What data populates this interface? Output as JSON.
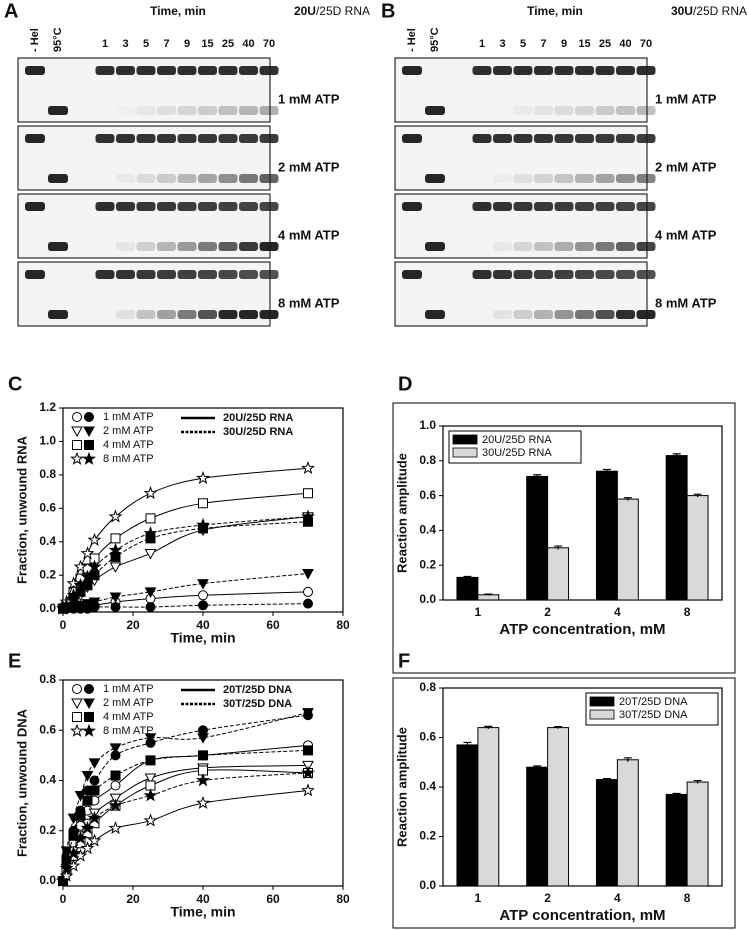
{
  "gels": [
    {
      "panel": "A",
      "lanes": [
        "- Hel",
        "95°C"
      ],
      "time_label": "Time, min",
      "times": [
        "1",
        "3",
        "5",
        "7",
        "9",
        "15",
        "25",
        "40",
        "70"
      ],
      "substrate_bold": "20U",
      "substrate_rest": "/25D RNA",
      "conditions": [
        "1 mM ATP",
        "2 mM ATP",
        "4 mM ATP",
        "8 mM ATP"
      ]
    },
    {
      "panel": "B",
      "lanes": [
        "- Hel",
        "95°C"
      ],
      "time_label": "Time, min",
      "times": [
        "1",
        "3",
        "5",
        "7",
        "9",
        "15",
        "25",
        "40",
        "70"
      ],
      "substrate_bold": "30U",
      "substrate_rest": "/25D RNA",
      "conditions": [
        "1 mM ATP",
        "2 mM ATP",
        "4 mM ATP",
        "8 mM ATP"
      ]
    }
  ],
  "chart_data": [
    {
      "type": "line",
      "panel": "C",
      "x_label": "Time, min",
      "y_label": "Fraction, unwound RNA",
      "x": [
        0,
        1,
        3,
        5,
        7,
        9,
        15,
        25,
        40,
        70
      ],
      "xlim": [
        0,
        80
      ],
      "xticks": [
        0,
        20,
        40,
        60,
        80
      ],
      "ylim": [
        -0.02,
        1.2
      ],
      "yticks": [
        {
          "value": 0,
          "label": "0.0"
        },
        0.2,
        0.4,
        0.6,
        0.8,
        {
          "value": 1,
          "label": "1.0"
        },
        1.2
      ],
      "substrates": [
        {
          "name": "20U/25D RNA",
          "dash": false,
          "filled": false
        },
        {
          "name": "30U/25D RNA",
          "dash": true,
          "filled": true
        }
      ],
      "series": [
        {
          "name": "1 mM ATP",
          "marker": "circle",
          "values": [
            [
              0,
              0,
              0.01,
              0.01,
              0.02,
              0.02,
              0.04,
              0.06,
              0.08,
              0.1
            ],
            [
              0,
              0,
              0,
              0,
              0,
              0.01,
              0.01,
              0.01,
              0.02,
              0.03
            ]
          ]
        },
        {
          "name": "2 mM ATP",
          "marker": "triangle",
          "values": [
            [
              0,
              0.01,
              0.04,
              0.08,
              0.13,
              0.17,
              0.25,
              0.33,
              0.47,
              0.55
            ],
            [
              0,
              0,
              0.01,
              0.02,
              0.03,
              0.04,
              0.07,
              0.1,
              0.15,
              0.21
            ]
          ]
        },
        {
          "name": "4 mM ATP",
          "marker": "square",
          "values": [
            [
              0,
              0.02,
              0.1,
              0.18,
              0.24,
              0.3,
              0.42,
              0.54,
              0.63,
              0.69
            ],
            [
              0,
              0.01,
              0.05,
              0.1,
              0.14,
              0.2,
              0.31,
              0.42,
              0.48,
              0.52
            ]
          ]
        },
        {
          "name": "8 mM ATP",
          "marker": "star",
          "values": [
            [
              0,
              0.04,
              0.15,
              0.25,
              0.33,
              0.41,
              0.55,
              0.69,
              0.78,
              0.84
            ],
            [
              0,
              0.02,
              0.08,
              0.14,
              0.19,
              0.25,
              0.35,
              0.45,
              0.5,
              0.55
            ]
          ]
        }
      ]
    },
    {
      "type": "bar",
      "panel": "D",
      "x_label": "ATP concentration, mM",
      "y_label": "Reaction amplitude",
      "categories": [
        "1",
        "2",
        "4",
        "8"
      ],
      "ylim": [
        0,
        1.0
      ],
      "yticks": [
        {
          "value": 0,
          "label": "0.0"
        },
        0.2,
        0.4,
        0.6,
        0.8,
        {
          "value": 1,
          "label": "1.0"
        }
      ],
      "legend": "top-left",
      "series": [
        {
          "name": "20U/25D RNA",
          "color": "#000000",
          "values": [
            0.13,
            0.71,
            0.74,
            0.83
          ],
          "errors": [
            0.005,
            0.01,
            0.01,
            0.01
          ]
        },
        {
          "name": "30U/25D RNA",
          "color": "#d9d9d9",
          "values": [
            0.03,
            0.3,
            0.58,
            0.6
          ],
          "errors": [
            0.004,
            0.01,
            0.008,
            0.008
          ]
        }
      ]
    },
    {
      "type": "line",
      "panel": "E",
      "x_label": "Time, min",
      "y_label": "Fraction, unwound DNA",
      "x": [
        0,
        1,
        3,
        5,
        7,
        9,
        15,
        25,
        40,
        70
      ],
      "xlim": [
        0,
        80
      ],
      "xticks": [
        0,
        20,
        40,
        60,
        80
      ],
      "ylim": [
        -0.02,
        0.8
      ],
      "yticks": [
        {
          "value": 0,
          "label": "0.0"
        },
        0.2,
        0.4,
        0.6,
        0.8
      ],
      "substrates": [
        {
          "name": "20T/25D DNA",
          "dash": false,
          "filled": false
        },
        {
          "name": "30T/25D DNA",
          "dash": true,
          "filled": true
        }
      ],
      "series": [
        {
          "name": "1 mM ATP",
          "marker": "circle",
          "values": [
            [
              0,
              0.07,
              0.15,
              0.22,
              0.28,
              0.32,
              0.38,
              0.48,
              0.5,
              0.54
            ],
            [
              0,
              0.1,
              0.2,
              0.28,
              0.36,
              0.4,
              0.5,
              0.55,
              0.6,
              0.66
            ]
          ]
        },
        {
          "name": "2 mM ATP",
          "marker": "triangle",
          "values": [
            [
              0,
              0.05,
              0.12,
              0.18,
              0.23,
              0.27,
              0.33,
              0.41,
              0.45,
              0.46
            ],
            [
              0,
              0.12,
              0.25,
              0.34,
              0.42,
              0.47,
              0.53,
              0.57,
              0.57,
              0.67
            ]
          ]
        },
        {
          "name": "4 mM ATP",
          "marker": "square",
          "values": [
            [
              0,
              0.04,
              0.1,
              0.15,
              0.19,
              0.23,
              0.3,
              0.38,
              0.44,
              0.43
            ],
            [
              0,
              0.08,
              0.18,
              0.26,
              0.32,
              0.36,
              0.42,
              0.48,
              0.5,
              0.52
            ]
          ]
        },
        {
          "name": "8 mM ATP",
          "marker": "star",
          "values": [
            [
              0,
              0.02,
              0.06,
              0.1,
              0.13,
              0.16,
              0.21,
              0.24,
              0.31,
              0.36
            ],
            [
              0,
              0.05,
              0.11,
              0.17,
              0.21,
              0.25,
              0.3,
              0.34,
              0.4,
              0.43
            ]
          ]
        }
      ]
    },
    {
      "type": "bar",
      "panel": "F",
      "x_label": "ATP concentration, mM",
      "y_label": "Reaction amplitude",
      "categories": [
        "1",
        "2",
        "4",
        "8"
      ],
      "ylim": [
        0,
        0.8
      ],
      "yticks": [
        {
          "value": 0,
          "label": "0.0"
        },
        0.2,
        0.4,
        0.6,
        0.8
      ],
      "legend": "top-right",
      "series": [
        {
          "name": "20T/25D DNA",
          "color": "#000000",
          "values": [
            0.57,
            0.48,
            0.43,
            0.37
          ],
          "errors": [
            0.01,
            0.005,
            0.004,
            0.004
          ]
        },
        {
          "name": "30T/25D DNA",
          "color": "#d9d9d9",
          "values": [
            0.64,
            0.64,
            0.51,
            0.42
          ],
          "errors": [
            0.005,
            0.004,
            0.008,
            0.006
          ]
        }
      ]
    }
  ]
}
